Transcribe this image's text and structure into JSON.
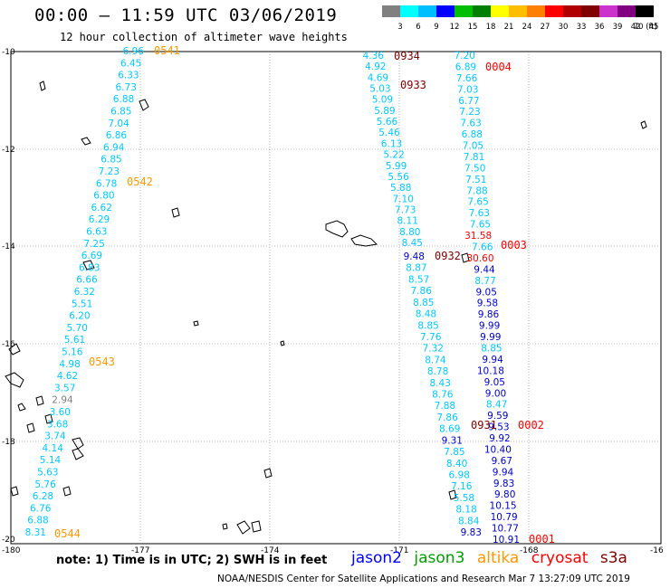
{
  "title": "00:00 – 11:59 UTC 03/06/2019",
  "subtitle": "12 hour collection of altimeter wave heights",
  "legend": {
    "colors": [
      "#808080",
      "#00ffff",
      "#00bfff",
      "#0000ff",
      "#00bf00",
      "#008000",
      "#ffff00",
      "#ffbf00",
      "#ff8000",
      "#ff0000",
      "#b00000",
      "#800000",
      "#cc33cc",
      "#800080",
      "#000000"
    ],
    "labels": [
      "3",
      "6",
      "9",
      "12",
      "15",
      "18",
      "21",
      "24",
      "27",
      "30",
      "33",
      "36",
      "39",
      "42",
      "45",
      "70 (ft)"
    ]
  },
  "axes": {
    "lon_ticks": [
      "-180",
      "-177",
      "-174",
      "-171",
      "-168",
      "-16"
    ],
    "lat_ticks": [
      "-10",
      "-12",
      "-14",
      "-16",
      "-18",
      "-20"
    ]
  },
  "tracks": {
    "t0541": {
      "time": "0541",
      "color": "#ff9900",
      "values": [
        "6.96",
        "6.45",
        "6.33",
        "6.73",
        "6.88",
        "6.85",
        "7.04",
        "6.86",
        "6.94",
        "6.85",
        "7.23",
        "6.78",
        "6.80",
        "6.62",
        "6.29",
        "6.63",
        "7.25",
        "6.69",
        "6.83",
        "6.66",
        "6.32",
        "5.51",
        "6.20",
        "5.70",
        "5.61",
        "5.16",
        "4.98",
        "4.62",
        "3.57",
        "2.94",
        "3.60",
        "3.68",
        "3.74",
        "4.14",
        "5.14",
        "5.63",
        "5.76",
        "6.28",
        "6.76",
        "6.88",
        "8.31"
      ]
    },
    "t0542": {
      "time": "0542",
      "color": "#ff9900"
    },
    "t0543": {
      "time": "0543",
      "color": "#ff9900"
    },
    "t0544": {
      "time": "0544",
      "color": "#ff9900"
    },
    "t0934": {
      "time": "0934",
      "color": "#800000"
    },
    "t0933": {
      "time": "0933",
      "color": "#800000"
    },
    "t0932": {
      "time": "0932",
      "color": "#800000"
    },
    "t0931": {
      "time": "0931",
      "color": "#800000"
    },
    "j2a": {
      "values": [
        "4.36",
        "4.92",
        "4.69",
        "5.03",
        "5.09",
        "5.89",
        "5.66",
        "5.46",
        "6.13",
        "5.22",
        "5.99",
        "5.56",
        "5.88",
        "7.10",
        "7.73",
        "8.11",
        "8.80",
        "8.45"
      ]
    },
    "j2b": {
      "values": [
        "9.48",
        "8.87",
        "8.57",
        "7.86",
        "8.85",
        "8.48",
        "8.85",
        "7.76",
        "7.32",
        "8.74",
        "8.78",
        "8.43",
        "8.76",
        "7.88",
        "7.86",
        "8.69",
        "9.31",
        "7.85",
        "8.40",
        "6.98",
        "7.16",
        "5.58",
        "8.18",
        "8.84",
        "9.83"
      ]
    },
    "t0004": {
      "time": "0004",
      "color": "#ff0000"
    },
    "t0003": {
      "time": "0003",
      "color": "#ff0000"
    },
    "t0002": {
      "time": "0002",
      "color": "#ff0000"
    },
    "t0001": {
      "time": "0001",
      "color": "#ff0000"
    },
    "s3a": {
      "values": [
        "7.20",
        "6.89",
        "7.66",
        "7.03",
        "6.77",
        "7.23",
        "7.63",
        "6.88",
        "7.05",
        "7.81",
        "7.50",
        "7.51",
        "7.88",
        "7.65",
        "7.63",
        "7.65",
        "31.58",
        "7.66",
        "30.60",
        "9.44",
        "8.77",
        "9.05",
        "9.58",
        "9.86",
        "9.99",
        "9.99",
        "8.85",
        "9.94",
        "10.18",
        "9.05",
        "9.00",
        "8.47",
        "9.59",
        "9.53",
        "9.92",
        "10.40",
        "9.67",
        "9.94",
        "9.83",
        "9.80",
        "10.15",
        "10.79",
        "10.77",
        "10.91"
      ]
    }
  },
  "note": "note: 1) Time is in UTC; 2) SWH is in feet",
  "satellites": [
    {
      "name": "jason2",
      "color": "#0000ff"
    },
    {
      "name": "jason3",
      "color": "#00a000"
    },
    {
      "name": "altika",
      "color": "#ff9900"
    },
    {
      "name": "cryosat",
      "color": "#ff0000"
    },
    {
      "name": "s3a",
      "color": "#800000"
    }
  ],
  "credit": "NOAA/NESDIS Center for Satellite Applications and Research   Mar  7 13:27:09 UTC 2019"
}
